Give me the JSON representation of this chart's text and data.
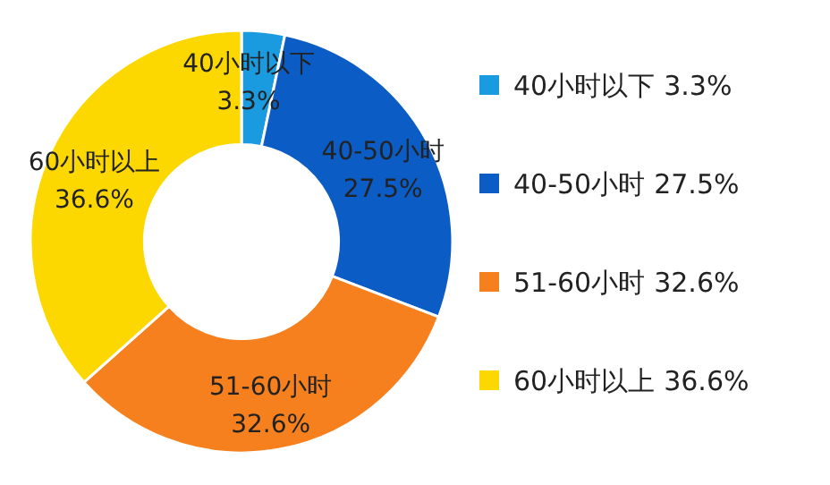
{
  "chart_data": {
    "type": "donut",
    "categories": [
      "40小时以下",
      "40-50小时",
      "51-60小时",
      "60小时以上"
    ],
    "values": [
      3.3,
      27.5,
      32.6,
      36.6
    ],
    "colors": [
      "#1a9be0",
      "#0b5cc4",
      "#f7801e",
      "#fdd800"
    ],
    "value_labels": [
      "3.3%",
      "27.5%",
      "32.6%",
      "36.6%"
    ],
    "legend": "right"
  }
}
